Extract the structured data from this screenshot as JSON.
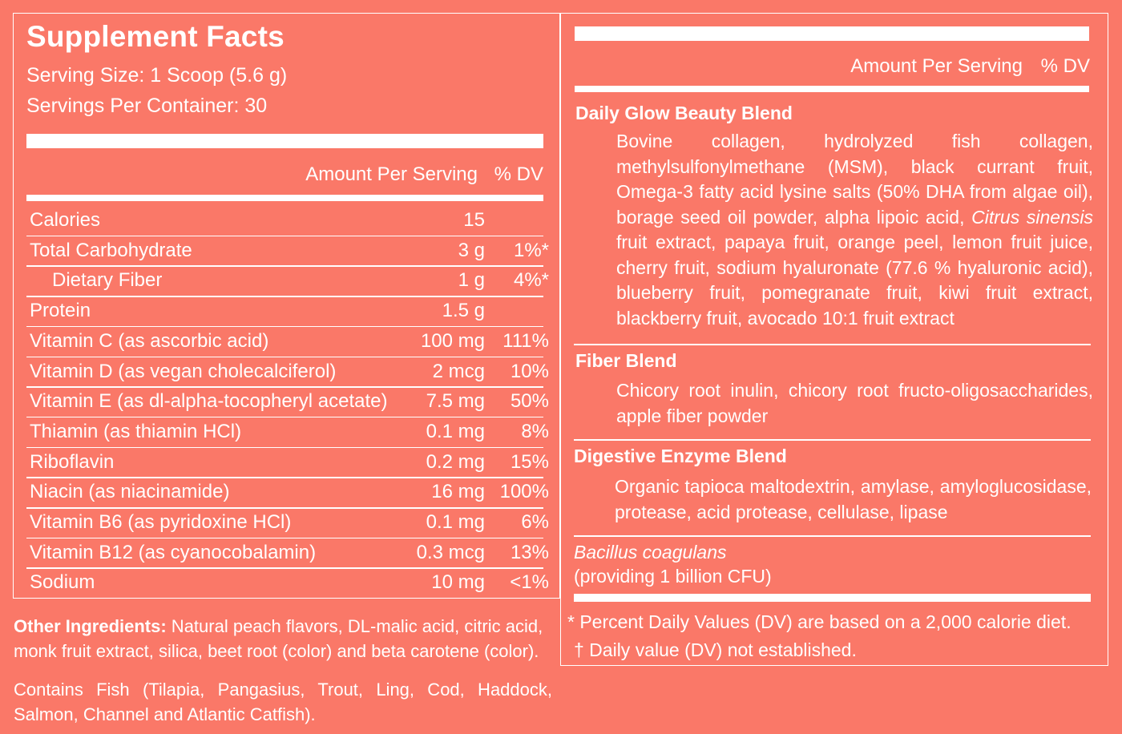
{
  "title": "Supplement Facts",
  "serving_size": "Serving Size: 1 Scoop (5.6 g)",
  "servings_per_container": "Servings Per Container: 30",
  "header": {
    "amount": "Amount Per Serving",
    "dv": "% DV"
  },
  "nutrients": [
    {
      "name": "Calories",
      "detail": "",
      "amount": "15",
      "dv": ""
    },
    {
      "name": "Total Carbohydrate",
      "detail": "",
      "amount": "3 g",
      "dv": "1%*"
    },
    {
      "name": "Dietary Fiber",
      "detail": "",
      "amount": "1 g",
      "dv": "4%*"
    },
    {
      "name": "Protein",
      "detail": "",
      "amount": "1.5 g",
      "dv": ""
    },
    {
      "name": "Vitamin C",
      "detail": " (as ascorbic acid)",
      "amount": "100 mg",
      "dv": "111%"
    },
    {
      "name": "Vitamin D",
      "detail": " (as vegan cholecalciferol)",
      "amount": "2 mcg",
      "dv": "10%"
    },
    {
      "name": "Vitamin E",
      "detail": " (as dl-alpha-tocopheryl acetate)",
      "amount": "7.5 mg",
      "dv": "50%"
    },
    {
      "name": "Thiamin",
      "detail": " (as thiamin HCl)",
      "amount": "0.1 mg",
      "dv": "8%"
    },
    {
      "name": "Riboflavin",
      "detail": "",
      "amount": "0.2 mg",
      "dv": "15%"
    },
    {
      "name": "Niacin",
      "detail": " (as niacinamide)",
      "amount": "16 mg",
      "dv": "100%"
    },
    {
      "name": "Vitamin B6",
      "detail": " (as pyridoxine HCl)",
      "amount": "0.1 mg",
      "dv": "6%"
    },
    {
      "name": "Vitamin B12",
      "detail": " (as cyanocobalamin)",
      "amount": "0.3 mcg",
      "dv": "13%"
    },
    {
      "name": "Sodium",
      "detail": "",
      "amount": "10 mg",
      "dv": "<1%"
    }
  ],
  "blends": {
    "glow_title": "Daily Glow Beauty Blend",
    "glow_body_a": "Bovine collagen, hydrolyzed fish collagen, methylsulfonylmethane (MSM), black currant fruit, Omega-3 fatty acid lysine salts (50% DHA from algae oil), borage seed oil powder, alpha lipoic acid, ",
    "glow_italic": "Citrus sinensis",
    "glow_body_b": " fruit extract, papaya fruit, orange peel, lemon fruit juice, cherry fruit, sodium hyaluronate (77.6 % hyaluronic acid), blueberry fruit, pomegranate fruit, kiwi fruit extract, blackberry fruit, avocado 10:1 fruit extract",
    "fiber_title": "Fiber Blend",
    "fiber_body": "Chicory root inulin, chicory root fructo-oligosaccharides, apple fiber powder",
    "enzyme_title": "Digestive Enzyme Blend",
    "enzyme_body": "Organic tapioca maltodextrin, amylase, amyloglucosidase, protease, acid protease, cellulase, lipase",
    "probiotic_name": "Bacillus coagulans",
    "probiotic_detail": "(providing 1 billion CFU)"
  },
  "footnotes": {
    "percent_dv": "* Percent Daily Values (DV) are based on a 2,000 calorie diet.",
    "dagger": "† Daily value (DV) not established."
  },
  "other_ingredients": {
    "label": "Other Ingredients:",
    "text": " Natural peach flavors, DL-malic acid, citric acid, monk fruit extract, silica, beet root (color) and beta carotene (color)."
  },
  "allergen": "Contains Fish (Tilapia, Pangasius, Trout, Ling, Cod, Haddock, Salmon, Channel and Atlantic Catfish).",
  "colors": {
    "background": "#fa7868",
    "foreground": "#ffffff"
  }
}
